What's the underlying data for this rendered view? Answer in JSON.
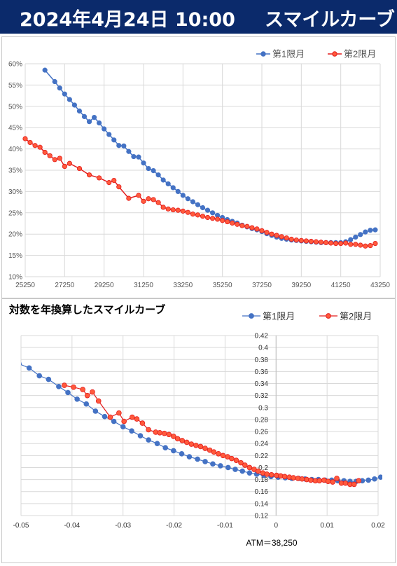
{
  "header": {
    "date": "2024年4月24日 10:00",
    "title": "スマイルカーブ"
  },
  "chart_data": [
    {
      "type": "line",
      "title": "",
      "legend_placement": "top-right",
      "x_ticks": [
        "25250",
        "27250",
        "29250",
        "31250",
        "33250",
        "35250",
        "37250",
        "39250",
        "41250",
        "43250"
      ],
      "y_ticks": [
        "10%",
        "15%",
        "20%",
        "25%",
        "30%",
        "35%",
        "40%",
        "45%",
        "50%",
        "55%",
        "60%"
      ],
      "xlim": [
        25250,
        43250
      ],
      "ylim": [
        0.1,
        0.6
      ],
      "grid": true,
      "series": [
        {
          "name": "第1限月",
          "color": "#4472c4",
          "x": [
            26250,
            26750,
            27000,
            27250,
            27500,
            27750,
            28000,
            28250,
            28500,
            28750,
            29000,
            29250,
            29500,
            29750,
            30000,
            30250,
            30500,
            30750,
            31000,
            31250,
            31500,
            31750,
            32000,
            32250,
            32500,
            32750,
            33000,
            33250,
            33500,
            33750,
            34000,
            34250,
            34500,
            34750,
            35000,
            35250,
            35500,
            35750,
            36000,
            36250,
            36500,
            36750,
            37000,
            37250,
            37500,
            37750,
            38000,
            38250,
            38500,
            38750,
            39000,
            39250,
            39500,
            39750,
            40000,
            40250,
            40500,
            40750,
            41000,
            41250,
            41500,
            41750,
            42000,
            42250,
            42500,
            42750,
            43000
          ],
          "y": [
            0.585,
            0.558,
            0.543,
            0.529,
            0.516,
            0.503,
            0.489,
            0.476,
            0.464,
            0.474,
            0.461,
            0.447,
            0.434,
            0.421,
            0.408,
            0.407,
            0.394,
            0.382,
            0.381,
            0.367,
            0.354,
            0.349,
            0.339,
            0.327,
            0.318,
            0.309,
            0.3,
            0.291,
            0.283,
            0.276,
            0.269,
            0.262,
            0.256,
            0.25,
            0.244,
            0.239,
            0.234,
            0.23,
            0.226,
            0.221,
            0.217,
            0.213,
            0.21,
            0.206,
            0.201,
            0.197,
            0.193,
            0.19,
            0.188,
            0.186,
            0.185,
            0.184,
            0.183,
            0.182,
            0.181,
            0.18,
            0.18,
            0.18,
            0.18,
            0.18,
            0.182,
            0.187,
            0.193,
            0.199,
            0.205,
            0.209,
            0.21
          ]
        },
        {
          "name": "第2限月",
          "color": "#e31b1b",
          "x": [
            25250,
            25500,
            25750,
            26000,
            26250,
            26500,
            26750,
            27000,
            27250,
            27500,
            28000,
            28500,
            29000,
            29500,
            29750,
            30000,
            30500,
            31000,
            31250,
            31500,
            31750,
            32000,
            32250,
            32500,
            32750,
            33000,
            33250,
            33500,
            33750,
            34000,
            34250,
            34500,
            34750,
            35000,
            35250,
            35500,
            35750,
            36000,
            36250,
            36500,
            36750,
            37000,
            37250,
            37500,
            37750,
            38000,
            38250,
            38500,
            38750,
            39000,
            39250,
            39500,
            39750,
            40000,
            40250,
            40500,
            40750,
            41000,
            41250,
            41500,
            41750,
            42000,
            42250,
            42500,
            42750,
            43000
          ],
          "y": [
            0.424,
            0.415,
            0.408,
            0.404,
            0.392,
            0.384,
            0.375,
            0.378,
            0.359,
            0.366,
            0.354,
            0.339,
            0.332,
            0.321,
            0.326,
            0.311,
            0.284,
            0.291,
            0.277,
            0.283,
            0.281,
            0.274,
            0.263,
            0.259,
            0.257,
            0.256,
            0.254,
            0.251,
            0.247,
            0.245,
            0.242,
            0.239,
            0.237,
            0.235,
            0.232,
            0.229,
            0.226,
            0.223,
            0.22,
            0.218,
            0.215,
            0.212,
            0.208,
            0.204,
            0.2,
            0.197,
            0.194,
            0.191,
            0.188,
            0.186,
            0.185,
            0.184,
            0.183,
            0.182,
            0.181,
            0.18,
            0.179,
            0.178,
            0.178,
            0.179,
            0.176,
            0.176,
            0.174,
            0.172,
            0.173,
            0.178
          ]
        }
      ]
    },
    {
      "type": "line",
      "title": "対数を年換算したスマイルカーブ",
      "xlabel": "ATM＝38,250",
      "legend_placement": "top-right",
      "x_ticks": [
        "-0.05",
        "-0.04",
        "-0.03",
        "-0.02",
        "-0.01",
        "0",
        "0.01",
        "0.02"
      ],
      "y_ticks": [
        "0.12",
        "0.14",
        "0.16",
        "0.18",
        "0.2",
        "0.22",
        "0.24",
        "0.26",
        "0.28",
        "0.3",
        "0.32",
        "0.34",
        "0.36",
        "0.38",
        "0.4",
        "0.42"
      ],
      "xlim": [
        -0.05,
        0.02
      ],
      "ylim": [
        0.12,
        0.42
      ],
      "grid": true,
      "series": [
        {
          "name": "第1限月",
          "color": "#4472c4",
          "x": [
            -0.0504,
            -0.0484,
            -0.0464,
            -0.0446,
            -0.0426,
            -0.0408,
            -0.039,
            -0.0372,
            -0.0354,
            -0.0336,
            -0.0318,
            -0.03,
            -0.0283,
            -0.0266,
            -0.025,
            -0.0233,
            -0.0217,
            -0.0201,
            -0.0185,
            -0.017,
            -0.0154,
            -0.0139,
            -0.0124,
            -0.0109,
            -0.0094,
            -0.008,
            -0.0066,
            -0.0052,
            -0.0038,
            -0.0024,
            -0.001,
            0.0004,
            0.0018,
            0.0031,
            0.0044,
            0.0057,
            0.007,
            0.0083,
            0.0096,
            0.0109,
            0.0121,
            0.0133,
            0.0145,
            0.0157,
            0.0169,
            0.0181,
            0.0193,
            0.0205
          ],
          "y": [
            0.373,
            0.366,
            0.353,
            0.347,
            0.335,
            0.325,
            0.314,
            0.306,
            0.294,
            0.285,
            0.277,
            0.268,
            0.261,
            0.253,
            0.246,
            0.24,
            0.233,
            0.228,
            0.223,
            0.218,
            0.214,
            0.21,
            0.206,
            0.203,
            0.2,
            0.197,
            0.194,
            0.191,
            0.189,
            0.187,
            0.185,
            0.184,
            0.183,
            0.182,
            0.182,
            0.181,
            0.18,
            0.18,
            0.179,
            0.179,
            0.178,
            0.178,
            0.177,
            0.177,
            0.178,
            0.179,
            0.181,
            0.184
          ]
        },
        {
          "name": "第2限月",
          "color": "#e31b1b",
          "x": [
            -0.0415,
            -0.0397,
            -0.0379,
            -0.037,
            -0.036,
            -0.0348,
            -0.0325,
            -0.0308,
            -0.0298,
            -0.0282,
            -0.0273,
            -0.0262,
            -0.025,
            -0.0236,
            -0.0228,
            -0.0219,
            -0.021,
            -0.0201,
            -0.0193,
            -0.0184,
            -0.0175,
            -0.0166,
            -0.0157,
            -0.0148,
            -0.0139,
            -0.013,
            -0.0122,
            -0.0113,
            -0.0104,
            -0.0095,
            -0.0087,
            -0.0078,
            -0.0069,
            -0.0061,
            -0.0052,
            -0.0043,
            -0.0035,
            -0.0026,
            -0.0018,
            -0.0009,
            0.0001,
            0.0009,
            0.0017,
            0.0026,
            0.0034,
            0.0043,
            0.0051,
            0.006,
            0.0068,
            0.0077,
            0.0085,
            0.0094,
            0.0102,
            0.0111,
            0.0119,
            0.0128,
            0.0136,
            0.0145,
            0.0153,
            0.0162
          ],
          "y": [
            0.337,
            0.334,
            0.33,
            0.32,
            0.326,
            0.311,
            0.284,
            0.291,
            0.277,
            0.284,
            0.281,
            0.274,
            0.263,
            0.259,
            0.258,
            0.257,
            0.255,
            0.252,
            0.248,
            0.245,
            0.242,
            0.239,
            0.237,
            0.235,
            0.232,
            0.229,
            0.226,
            0.223,
            0.22,
            0.218,
            0.215,
            0.212,
            0.208,
            0.204,
            0.2,
            0.197,
            0.194,
            0.191,
            0.189,
            0.188,
            0.187,
            0.186,
            0.185,
            0.184,
            0.183,
            0.182,
            0.181,
            0.18,
            0.179,
            0.178,
            0.178,
            0.179,
            0.177,
            0.176,
            0.182,
            0.174,
            0.174,
            0.172,
            0.172,
            0.178
          ]
        }
      ]
    }
  ]
}
